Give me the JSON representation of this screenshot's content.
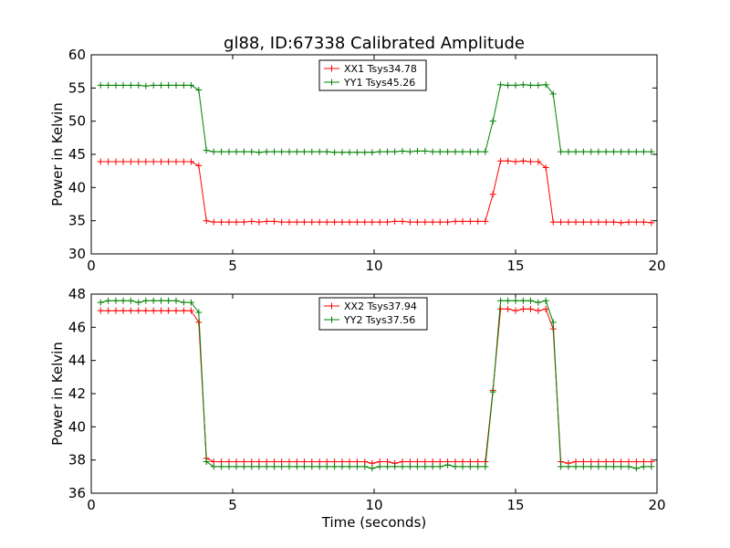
{
  "chart_data": [
    {
      "type": "line",
      "title": "gl88, ID:67338 Calibrated Amplitude",
      "xlabel": "",
      "ylabel": "Power in Kelvin",
      "xlim": [
        0,
        20
      ],
      "ylim": [
        30,
        60
      ],
      "xticks": [
        0,
        5,
        10,
        15,
        20
      ],
      "yticks": [
        30,
        35,
        40,
        45,
        50,
        55,
        60
      ],
      "legend_position": "top-center",
      "x": [
        0.33,
        0.6,
        0.87,
        1.13,
        1.4,
        1.67,
        1.93,
        2.2,
        2.47,
        2.73,
        3.0,
        3.27,
        3.53,
        3.8,
        4.07,
        4.33,
        4.6,
        4.87,
        5.13,
        5.4,
        5.67,
        5.93,
        6.2,
        6.47,
        6.73,
        7.0,
        7.27,
        7.53,
        7.8,
        8.07,
        8.33,
        8.6,
        8.87,
        9.13,
        9.4,
        9.67,
        9.93,
        10.2,
        10.47,
        10.73,
        11.0,
        11.27,
        11.53,
        11.8,
        12.07,
        12.33,
        12.6,
        12.87,
        13.13,
        13.4,
        13.67,
        13.93,
        14.2,
        14.47,
        14.73,
        15.0,
        15.27,
        15.53,
        15.8,
        16.07,
        16.33,
        16.6,
        16.87,
        17.13,
        17.4,
        17.67,
        17.93,
        18.2,
        18.47,
        18.73,
        19.0,
        19.27,
        19.53,
        19.8
      ],
      "series": [
        {
          "name": "XX1 Tsys34.78",
          "color": "#ff0000",
          "values": [
            43.9,
            43.9,
            43.9,
            43.9,
            43.9,
            43.9,
            43.9,
            43.9,
            43.9,
            43.9,
            43.9,
            43.9,
            43.9,
            43.3,
            35.0,
            34.8,
            34.8,
            34.8,
            34.8,
            34.8,
            34.9,
            34.8,
            34.9,
            34.9,
            34.8,
            34.8,
            34.8,
            34.8,
            34.8,
            34.8,
            34.8,
            34.8,
            34.8,
            34.8,
            34.8,
            34.8,
            34.8,
            34.8,
            34.8,
            34.9,
            34.9,
            34.8,
            34.8,
            34.8,
            34.8,
            34.8,
            34.8,
            34.9,
            34.9,
            34.9,
            34.9,
            34.9,
            39.0,
            44.0,
            44.0,
            43.9,
            44.0,
            43.9,
            43.9,
            43.0,
            34.8,
            34.8,
            34.8,
            34.8,
            34.8,
            34.8,
            34.8,
            34.8,
            34.8,
            34.7,
            34.8,
            34.8,
            34.8,
            34.7
          ]
        },
        {
          "name": "YY1 Tsys45.26",
          "color": "#008000",
          "values": [
            55.4,
            55.4,
            55.4,
            55.4,
            55.4,
            55.4,
            55.3,
            55.4,
            55.4,
            55.4,
            55.4,
            55.4,
            55.4,
            54.7,
            45.6,
            45.4,
            45.4,
            45.4,
            45.4,
            45.4,
            45.4,
            45.3,
            45.4,
            45.4,
            45.4,
            45.4,
            45.4,
            45.4,
            45.4,
            45.4,
            45.4,
            45.3,
            45.3,
            45.3,
            45.3,
            45.3,
            45.3,
            45.4,
            45.4,
            45.4,
            45.5,
            45.4,
            45.5,
            45.5,
            45.4,
            45.4,
            45.4,
            45.4,
            45.4,
            45.4,
            45.4,
            45.4,
            50.0,
            55.5,
            55.4,
            55.4,
            55.5,
            55.4,
            55.4,
            55.5,
            54.1,
            45.4,
            45.4,
            45.4,
            45.4,
            45.4,
            45.4,
            45.4,
            45.4,
            45.4,
            45.4,
            45.4,
            45.4,
            45.4
          ]
        }
      ]
    },
    {
      "type": "line",
      "title": "",
      "xlabel": "Time (seconds)",
      "ylabel": "Power in Kelvin",
      "xlim": [
        0,
        20
      ],
      "ylim": [
        36,
        48
      ],
      "xticks": [
        0,
        5,
        10,
        15,
        20
      ],
      "yticks": [
        36,
        38,
        40,
        42,
        44,
        46,
        48
      ],
      "legend_position": "top-center",
      "x": [
        0.33,
        0.6,
        0.87,
        1.13,
        1.4,
        1.67,
        1.93,
        2.2,
        2.47,
        2.73,
        3.0,
        3.27,
        3.53,
        3.8,
        4.07,
        4.33,
        4.6,
        4.87,
        5.13,
        5.4,
        5.67,
        5.93,
        6.2,
        6.47,
        6.73,
        7.0,
        7.27,
        7.53,
        7.8,
        8.07,
        8.33,
        8.6,
        8.87,
        9.13,
        9.4,
        9.67,
        9.93,
        10.2,
        10.47,
        10.73,
        11.0,
        11.27,
        11.53,
        11.8,
        12.07,
        12.33,
        12.6,
        12.87,
        13.13,
        13.4,
        13.67,
        13.93,
        14.2,
        14.47,
        14.73,
        15.0,
        15.27,
        15.53,
        15.8,
        16.07,
        16.33,
        16.6,
        16.87,
        17.13,
        17.4,
        17.67,
        17.93,
        18.2,
        18.47,
        18.73,
        19.0,
        19.27,
        19.53,
        19.8
      ],
      "series": [
        {
          "name": "XX2 Tsys37.94",
          "color": "#ff0000",
          "values": [
            47.0,
            47.0,
            47.0,
            47.0,
            47.0,
            47.0,
            47.0,
            47.0,
            47.0,
            47.0,
            47.0,
            47.0,
            47.0,
            46.3,
            38.1,
            37.9,
            37.9,
            37.9,
            37.9,
            37.9,
            37.9,
            37.9,
            37.9,
            37.9,
            37.9,
            37.9,
            37.9,
            37.9,
            37.9,
            37.9,
            37.9,
            37.9,
            37.9,
            37.9,
            37.9,
            37.9,
            37.8,
            37.9,
            37.9,
            37.8,
            37.9,
            37.9,
            37.9,
            37.9,
            37.9,
            37.9,
            37.9,
            37.9,
            37.9,
            37.9,
            37.9,
            37.9,
            42.2,
            47.1,
            47.1,
            47.0,
            47.1,
            47.1,
            47.0,
            47.1,
            45.9,
            37.9,
            37.8,
            37.9,
            37.9,
            37.9,
            37.9,
            37.9,
            37.9,
            37.9,
            37.9,
            37.9,
            37.9,
            37.9
          ]
        },
        {
          "name": "YY2 Tsys37.56",
          "color": "#008000",
          "values": [
            47.5,
            47.6,
            47.6,
            47.6,
            47.6,
            47.5,
            47.6,
            47.6,
            47.6,
            47.6,
            47.6,
            47.5,
            47.5,
            46.9,
            37.9,
            37.6,
            37.6,
            37.6,
            37.6,
            37.6,
            37.6,
            37.6,
            37.6,
            37.6,
            37.6,
            37.6,
            37.6,
            37.6,
            37.6,
            37.6,
            37.6,
            37.6,
            37.6,
            37.6,
            37.6,
            37.6,
            37.5,
            37.6,
            37.6,
            37.6,
            37.6,
            37.6,
            37.6,
            37.6,
            37.6,
            37.6,
            37.7,
            37.6,
            37.6,
            37.6,
            37.6,
            37.6,
            42.1,
            47.6,
            47.6,
            47.6,
            47.6,
            47.6,
            47.5,
            47.6,
            46.3,
            37.6,
            37.6,
            37.6,
            37.6,
            37.6,
            37.6,
            37.6,
            37.6,
            37.6,
            37.6,
            37.5,
            37.6,
            37.6
          ]
        }
      ]
    }
  ]
}
